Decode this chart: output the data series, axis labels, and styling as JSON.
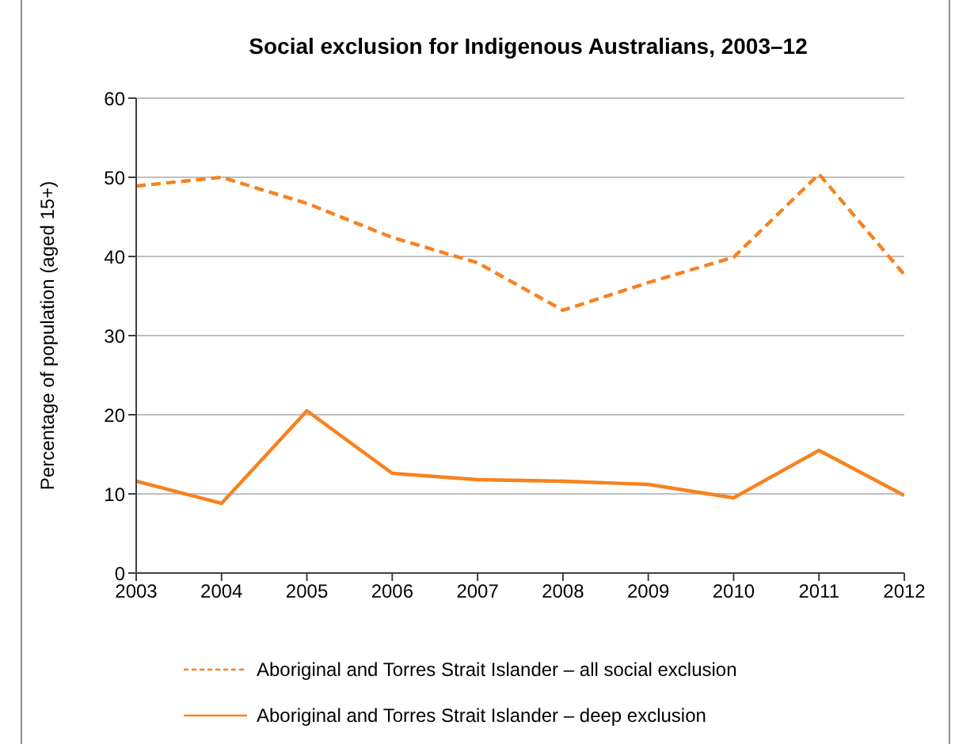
{
  "chart_data": {
    "type": "line",
    "title": "Social exclusion for Indigenous Australians, 2003–12",
    "ylabel": "Percentage of population (aged 15+)",
    "x": [
      2003,
      2004,
      2005,
      2006,
      2007,
      2008,
      2009,
      2010,
      2011,
      2012
    ],
    "xlim": [
      2003,
      2012
    ],
    "xticks": [
      2003,
      2004,
      2005,
      2006,
      2007,
      2008,
      2009,
      2010,
      2011,
      2012
    ],
    "ylim": [
      0,
      60
    ],
    "yticks": [
      0,
      10,
      20,
      30,
      40,
      50,
      60
    ],
    "grid": "y",
    "legend": "bottom",
    "series": [
      {
        "name": "Aboriginal and Torres Strait Islander – all social exclusion",
        "color": "#f7821f",
        "line_style": "dashed",
        "values": [
          48.9,
          50,
          46.7,
          42.4,
          39.2,
          33.2,
          36.7,
          39.9,
          50.4,
          37.7
        ]
      },
      {
        "name": "Aboriginal and Torres Strait Islander – deep exclusion",
        "color": "#f7821f",
        "line_style": "solid",
        "values": [
          11.6,
          8.8,
          20.5,
          12.6,
          11.8,
          11.6,
          11.2,
          9.5,
          15.5,
          9.8
        ]
      }
    ]
  }
}
